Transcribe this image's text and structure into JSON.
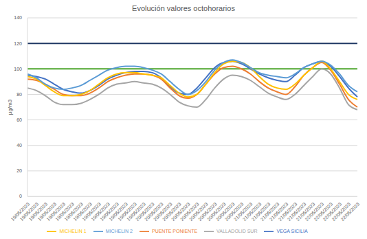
{
  "chart_data": {
    "type": "line",
    "title": "Evolución valores octohorarios",
    "y_label": "µg/m3",
    "categories": [
      "19/05/2023",
      "19/05/2023",
      "19/05/2023",
      "19/05/2023",
      "19/05/2023",
      "19/05/2023",
      "19/05/2023",
      "19/05/2023",
      "19/05/2023",
      "19/05/2023",
      "19/05/2023",
      "19/05/2023",
      "19/05/2023",
      "19/05/2023",
      "20/05/2023",
      "20/05/2023",
      "20/05/2023",
      "20/05/2023",
      "20/05/2023",
      "20/05/2023",
      "20/05/2023",
      "20/05/2023",
      "20/05/2023",
      "20/05/2023",
      "20/05/2023",
      "21/05/2023",
      "21/05/2023",
      "21/05/2023",
      "21/05/2023",
      "21/05/2023",
      "21/05/2023",
      "21/05/2023",
      "21/05/2023",
      "22/05/2023",
      "22/05/2023",
      "22/05/2023",
      "22/05/2023",
      "22/05/2023"
    ],
    "series": [
      {
        "name": "VEGA SICILIA",
        "color": "#4472c4",
        "values": [
          95,
          94,
          92,
          88,
          84,
          82,
          81,
          83,
          87,
          92,
          95,
          97,
          98,
          98,
          97,
          93,
          86,
          81,
          80,
          85,
          93,
          101,
          105,
          106,
          104,
          100,
          96,
          93,
          91,
          90,
          95,
          101,
          104,
          106,
          102,
          94,
          85,
          78
        ]
      },
      {
        "name": "PUENTE PONIENTE",
        "color": "#ed7d31",
        "values": [
          92,
          91,
          88,
          84,
          80,
          79,
          79,
          81,
          85,
          90,
          93,
          95,
          96,
          96,
          95,
          92,
          85,
          79,
          77,
          80,
          88,
          96,
          101,
          102,
          100,
          96,
          90,
          85,
          82,
          80,
          86,
          95,
          101,
          105,
          99,
          88,
          76,
          70
        ]
      },
      {
        "name": "VALLADOLID SUR",
        "color": "#a5a5a5",
        "values": [
          85,
          83,
          79,
          74,
          72,
          72,
          73,
          76,
          80,
          85,
          88,
          89,
          90,
          89,
          88,
          85,
          80,
          74,
          71,
          70,
          76,
          85,
          92,
          95,
          94,
          91,
          86,
          81,
          78,
          76,
          80,
          87,
          94,
          100,
          96,
          85,
          72,
          68
        ]
      },
      {
        "name": "MICHELIN 1",
        "color": "#ffc000",
        "values": [
          94,
          92,
          87,
          82,
          79,
          79,
          80,
          83,
          88,
          93,
          96,
          97,
          97,
          96,
          95,
          93,
          87,
          81,
          78,
          80,
          88,
          97,
          104,
          106,
          105,
          101,
          94,
          88,
          85,
          84,
          88,
          95,
          101,
          106,
          100,
          90,
          80,
          76
        ]
      },
      {
        "name": "MICHELIN 2",
        "color": "#5b9bd5",
        "values": [
          96,
          93,
          88,
          85,
          84,
          85,
          87,
          91,
          95,
          99,
          101,
          102,
          102,
          101,
          99,
          96,
          90,
          84,
          80,
          83,
          90,
          99,
          105,
          107,
          105,
          101,
          97,
          95,
          94,
          93,
          96,
          101,
          104,
          106,
          103,
          96,
          87,
          82
        ]
      }
    ],
    "reference_lines": [
      {
        "value": 120,
        "color": "#1f3864"
      },
      {
        "value": 100,
        "color": "#4ea72e"
      }
    ],
    "ylim": [
      0,
      140
    ],
    "yticks": [
      0,
      20,
      40,
      60,
      80,
      100,
      120,
      140
    ],
    "grid": true,
    "legend": "bottom"
  }
}
